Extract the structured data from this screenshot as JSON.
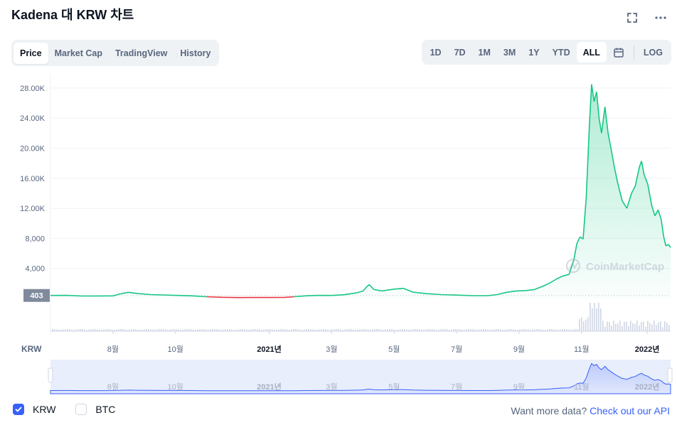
{
  "header": {
    "title": "Kadena 대 KRW 차트"
  },
  "icons": {
    "fullscreen": "fullscreen-icon",
    "more": "more-horizontal-icon",
    "calendar": "calendar-icon"
  },
  "tabs": [
    {
      "label": "Price",
      "active": true
    },
    {
      "label": "Market Cap",
      "active": false
    },
    {
      "label": "TradingView",
      "active": false
    },
    {
      "label": "History",
      "active": false
    }
  ],
  "ranges": [
    {
      "label": "1D",
      "active": false
    },
    {
      "label": "7D",
      "active": false
    },
    {
      "label": "1M",
      "active": false
    },
    {
      "label": "3M",
      "active": false
    },
    {
      "label": "1Y",
      "active": false
    },
    {
      "label": "YTD",
      "active": false
    },
    {
      "label": "ALL",
      "active": true
    }
  ],
  "log_label": "LOG",
  "watermark": "CoinMarketCap",
  "legend": [
    {
      "label": "KRW",
      "checked": true
    },
    {
      "label": "BTC",
      "checked": false
    }
  ],
  "footer": {
    "prefix": "Want more data? ",
    "link": "Check out our API"
  },
  "colors": {
    "up": "#16c784",
    "down": "#ea3943",
    "accent": "#3861fb",
    "grid": "#eff2f5",
    "text_secondary": "#58667e"
  },
  "chart_data": {
    "type": "area",
    "currency_label": "KRW",
    "y_ticks": [
      "4,000",
      "8,000",
      "12.00K",
      "16.00K",
      "20.00K",
      "24.00K",
      "28.00K"
    ],
    "y_tick_values": [
      4000,
      8000,
      12000,
      16000,
      20000,
      24000,
      28000
    ],
    "ylim": [
      0,
      29500
    ],
    "x_ticks": [
      {
        "label": "8월",
        "t": 3.0,
        "bold": false
      },
      {
        "label": "10월",
        "t": 5.0,
        "bold": false
      },
      {
        "label": "2021년",
        "t": 8.0,
        "bold": true
      },
      {
        "label": "3월",
        "t": 10.0,
        "bold": false
      },
      {
        "label": "5월",
        "t": 12.0,
        "bold": false
      },
      {
        "label": "7월",
        "t": 14.0,
        "bold": false
      },
      {
        "label": "9월",
        "t": 16.0,
        "bold": false
      },
      {
        "label": "11월",
        "t": 18.0,
        "bold": false
      },
      {
        "label": "2022년",
        "t": 20.1,
        "bold": true
      }
    ],
    "x_range": [
      1.0,
      20.85
    ],
    "baseline_value": 403,
    "baseline_label": "403",
    "series": [
      {
        "points": [
          [
            1.0,
            403
          ],
          [
            1.5,
            420
          ],
          [
            2.0,
            330
          ],
          [
            2.5,
            330
          ],
          [
            3.0,
            350
          ],
          [
            3.2,
            580
          ],
          [
            3.5,
            820
          ],
          [
            3.8,
            650
          ],
          [
            4.2,
            520
          ],
          [
            4.6,
            470
          ],
          [
            5.0,
            420
          ],
          [
            5.5,
            360
          ],
          [
            6.0,
            240
          ],
          [
            6.5,
            160
          ],
          [
            7.0,
            120
          ],
          [
            7.5,
            130
          ],
          [
            8.0,
            130
          ],
          [
            8.5,
            150
          ],
          [
            8.8,
            240
          ],
          [
            9.2,
            360
          ],
          [
            9.6,
            420
          ],
          [
            10.0,
            410
          ],
          [
            10.4,
            500
          ],
          [
            10.8,
            750
          ],
          [
            11.0,
            980
          ],
          [
            11.1,
            1450
          ],
          [
            11.2,
            1850
          ],
          [
            11.35,
            1200
          ],
          [
            11.6,
            1000
          ],
          [
            12.0,
            1250
          ],
          [
            12.3,
            1350
          ],
          [
            12.6,
            850
          ],
          [
            13.0,
            650
          ],
          [
            13.5,
            520
          ],
          [
            14.0,
            450
          ],
          [
            14.5,
            380
          ],
          [
            15.0,
            380
          ],
          [
            15.3,
            520
          ],
          [
            15.6,
            820
          ],
          [
            15.9,
            1000
          ],
          [
            16.2,
            1050
          ],
          [
            16.5,
            1200
          ],
          [
            16.8,
            1700
          ],
          [
            17.0,
            2100
          ],
          [
            17.2,
            2600
          ],
          [
            17.4,
            3000
          ],
          [
            17.6,
            3200
          ],
          [
            17.75,
            5100
          ],
          [
            17.85,
            7300
          ],
          [
            17.95,
            8200
          ],
          [
            18.05,
            7900
          ],
          [
            18.15,
            13500
          ],
          [
            18.25,
            23000
          ],
          [
            18.32,
            28500
          ],
          [
            18.4,
            26200
          ],
          [
            18.48,
            27500
          ],
          [
            18.56,
            24000
          ],
          [
            18.64,
            22000
          ],
          [
            18.75,
            25500
          ],
          [
            18.85,
            22000
          ],
          [
            18.95,
            19800
          ],
          [
            19.05,
            17500
          ],
          [
            19.15,
            15500
          ],
          [
            19.3,
            13000
          ],
          [
            19.45,
            12000
          ],
          [
            19.6,
            14000
          ],
          [
            19.72,
            15000
          ],
          [
            19.85,
            17500
          ],
          [
            19.92,
            18300
          ],
          [
            20.0,
            16500
          ],
          [
            20.12,
            15200
          ],
          [
            20.25,
            12300
          ],
          [
            20.35,
            11000
          ],
          [
            20.45,
            11800
          ],
          [
            20.55,
            10500
          ],
          [
            20.63,
            8200
          ],
          [
            20.7,
            7000
          ],
          [
            20.78,
            7200
          ],
          [
            20.85,
            6800
          ]
        ]
      }
    ]
  }
}
